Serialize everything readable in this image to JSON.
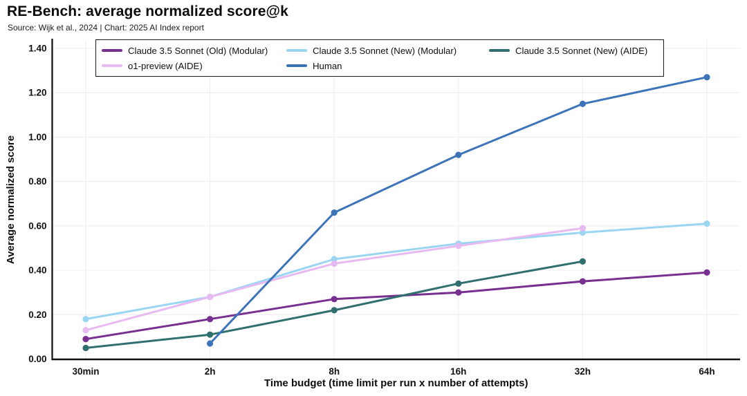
{
  "header": {
    "title": "RE-Bench: average normalized score@k",
    "subtitle": "Source: Wijk et al., 2024 | Chart: 2025 AI Index report"
  },
  "chart_data": {
    "type": "line",
    "title": "RE-Bench: average normalized score@k",
    "subtitle": "Source: Wijk et al., 2024 | Chart: 2025 AI Index report",
    "x_categories": [
      "30min",
      "2h",
      "8h",
      "16h",
      "32h",
      "64h"
    ],
    "xlabel": "Time budget (time limit per run x number of attempts)",
    "ylabel": "Average normalized score",
    "ylim": [
      0,
      1.4
    ],
    "ytick_step": 0.2,
    "ytick_labels": [
      "0.00",
      "0.20",
      "0.40",
      "0.60",
      "0.80",
      "1.00",
      "1.20",
      "1.40"
    ],
    "grid": true,
    "legend_position": "top-inside-box",
    "marker": "circle",
    "series": [
      {
        "name": "Claude 3.5 Sonnet (Old) (Modular)",
        "color": "#77308F",
        "values": [
          0.09,
          0.18,
          0.27,
          0.3,
          0.35,
          0.39
        ]
      },
      {
        "name": "Claude 3.5 Sonnet (New) (Modular)",
        "color": "#9AD6F2",
        "values": [
          0.18,
          0.28,
          0.45,
          0.52,
          0.57,
          0.61
        ]
      },
      {
        "name": "Claude 3.5 Sonnet (New) (AIDE)",
        "color": "#2F6F6D",
        "values": [
          0.05,
          0.11,
          0.22,
          0.34,
          0.44,
          null
        ]
      },
      {
        "name": "o1-preview (AIDE)",
        "color": "#E7BAF1",
        "values": [
          0.13,
          0.28,
          0.43,
          0.51,
          0.59,
          null
        ]
      },
      {
        "name": "Human",
        "color": "#3D74B9",
        "values": [
          null,
          0.07,
          0.66,
          0.92,
          1.15,
          1.27
        ]
      }
    ]
  },
  "colors": {
    "background": "#ffffff",
    "grid": "#f3edf2",
    "axis": "#0f0f0f",
    "legend_border": "#1a1a1a"
  }
}
